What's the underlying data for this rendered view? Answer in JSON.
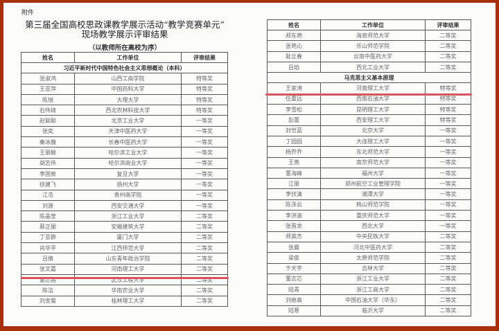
{
  "left_page": {
    "attachment_label": "附件",
    "title_line1": "第三届全国高校思政课教学展示活动“教学竞赛单元”",
    "title_line2": "现场教学展示评审结果",
    "subtitle": "（以教师所在高校为序）",
    "headers": [
      "姓名",
      "工作单位",
      "评审结果"
    ],
    "section": "习近平新时代中国特色社会主义思想概论（本科）",
    "rows": [
      [
        "张淑鸿",
        "山西工商学院",
        "特等奖"
      ],
      [
        "王亚萍",
        "中国药科大学",
        "特等奖"
      ],
      [
        "陈旭",
        "大理大学",
        "特等奖"
      ],
      [
        "石伟琦",
        "西北农林科技大学",
        "特等奖"
      ],
      [
        "赵聪聪",
        "北京工业大学",
        "一等奖"
      ],
      [
        "张奕",
        "天津中医药大学",
        "一等奖"
      ],
      [
        "秦冰馥",
        "长春中医药大学",
        "一等奖"
      ],
      [
        "王丽颖",
        "哈尔滨工业大学",
        "一等奖"
      ],
      [
        "胡志伟",
        "哈尔滨商业大学",
        "一等奖"
      ],
      [
        "李国泉",
        "复旦大学",
        "一等奖"
      ],
      [
        "徐建飞",
        "扬州大学",
        "一等奖"
      ],
      [
        "江浩",
        "贵州商学院",
        "一等奖"
      ],
      [
        "刘源",
        "西安交通大学",
        "一等奖"
      ],
      [
        "陈晶莹",
        "浙江工业大学",
        "二等奖"
      ],
      [
        "蔡正丽",
        "安徽建筑大学",
        "二等奖"
      ],
      [
        "丁亚群",
        "厦门大学",
        "二等奖"
      ],
      [
        "肖华平",
        "江西师范大学",
        "二等奖"
      ],
      [
        "吕倩",
        "山东青年政治学院",
        "二等奖"
      ],
      [
        "张文嘉",
        "河南理工大学",
        "二等奖"
      ],
      [
        "董芯茜",
        "武汉工程大学",
        "二等奖"
      ],
      [
        "陈洁",
        "华南农业大学",
        "二等奖"
      ],
      [
        "刘金菊",
        "桂林理工大学",
        "二等奖"
      ]
    ]
  },
  "right_page": {
    "headers": [
      "姓名",
      "工作单位",
      "评审结果"
    ],
    "rows_before": [
      [
        "郑东艳",
        "海南师范大学",
        "二等奖"
      ],
      [
        "张艳沁",
        "乐山师范学院",
        "二等奖"
      ],
      [
        "耿立春",
        "云南中医药大学",
        "二等奖"
      ],
      [
        "吕焰",
        "西北工业大学",
        "二等奖"
      ]
    ],
    "section": "马克思主义基本原理",
    "rows": [
      [
        "王家涛",
        "河南理工大学",
        "特等奖"
      ],
      [
        "任重远",
        "西南石油大学",
        "特等奖"
      ],
      [
        "李雪松",
        "昆明理工大学",
        "特等奖"
      ],
      [
        "彭蕾",
        "西安理工大学",
        "特等奖"
      ],
      [
        "封世蓝",
        "北京大学",
        "一等奖"
      ],
      [
        "丁园园",
        "大连理工大学",
        "一等奖"
      ],
      [
        "杨乔乔",
        "东北师范大学",
        "一等奖"
      ],
      [
        "王燕",
        "南京师范大学",
        "一等奖"
      ],
      [
        "董海峰",
        "福州大学",
        "一等奖"
      ],
      [
        "江丽",
        "郑州航空工业管理学院",
        "一等奖"
      ],
      [
        "李伏清",
        "湘潭大学",
        "一等奖"
      ],
      [
        "陈泽云",
        "韩山师范学院",
        "一等奖"
      ],
      [
        "李洪淑",
        "重庆师范大学",
        "一等奖"
      ],
      [
        "张晋龙",
        "西北大学",
        "一等奖"
      ],
      [
        "师英杰",
        "中央民族大学",
        "二等奖"
      ],
      [
        "张晨",
        "河北中医药大学",
        "二等奖"
      ],
      [
        "梁俊",
        "太原师范学院",
        "二等奖"
      ],
      [
        "于天宇",
        "吉林大学",
        "二等奖"
      ],
      [
        "董志芯",
        "浙江工业大学",
        "二等奖"
      ],
      [
        "陆青",
        "浙江工商大学",
        "二等奖"
      ],
      [
        "刘继高",
        "中国石油大学（华东）",
        "二等奖"
      ],
      [
        "陆寒",
        "临沂大学",
        "二等奖"
      ]
    ]
  },
  "colors": {
    "frame": "#a8300c",
    "highlight_line": "#d9535e"
  }
}
